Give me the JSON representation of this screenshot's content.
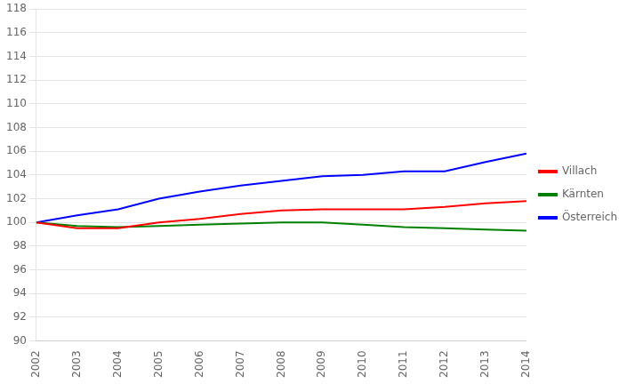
{
  "chart_data": {
    "type": "line",
    "categories": [
      "2002",
      "2003",
      "2004",
      "2005",
      "2006",
      "2007",
      "2008",
      "2009",
      "2010",
      "2011",
      "2012",
      "2013",
      "2014"
    ],
    "series": [
      {
        "name": "Villach",
        "color": "#ff0000",
        "values": [
          100.0,
          99.5,
          99.5,
          100.0,
          100.3,
          100.7,
          101.0,
          101.1,
          101.1,
          101.1,
          101.3,
          101.6,
          101.8
        ]
      },
      {
        "name": "Kärnten",
        "color": "#008000",
        "values": [
          100.0,
          99.7,
          99.6,
          99.7,
          99.8,
          99.9,
          100.0,
          100.0,
          99.8,
          99.6,
          99.5,
          99.4,
          99.3
        ]
      },
      {
        "name": "Österreich",
        "color": "#0000ff",
        "values": [
          100.0,
          100.6,
          101.1,
          102.0,
          102.6,
          103.1,
          103.5,
          103.9,
          104.0,
          104.3,
          104.3,
          105.1,
          105.8
        ]
      }
    ],
    "ylim": [
      90,
      118
    ],
    "yticks": [
      90,
      92,
      94,
      96,
      98,
      100,
      102,
      104,
      106,
      108,
      110,
      112,
      114,
      116,
      118
    ],
    "grid": true,
    "legend": "right"
  }
}
